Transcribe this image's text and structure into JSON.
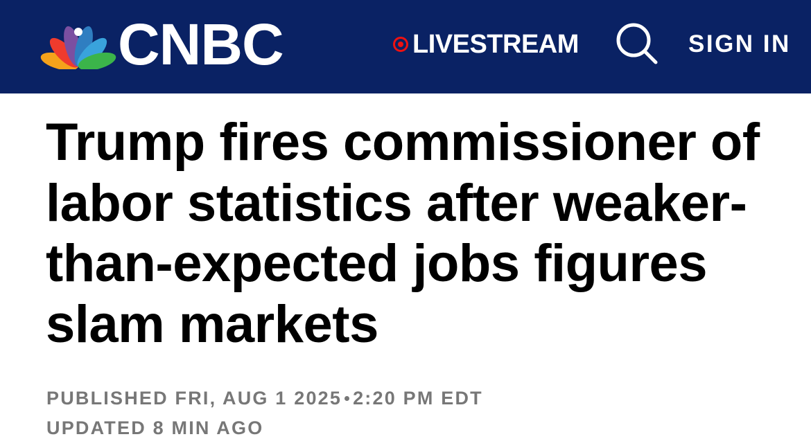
{
  "header": {
    "logo": "CNBC",
    "livestream": "LIVESTREAM",
    "sign_in": "SIGN IN"
  },
  "article": {
    "headline": "Trump fires commissioner of labor statistics after weaker-than-expected jobs figures slam markets",
    "published": "PUBLISHED FRI, AUG 1 2025",
    "published_time": "2:20 PM EDT",
    "updated": "UPDATED 8 MIN AGO"
  }
}
